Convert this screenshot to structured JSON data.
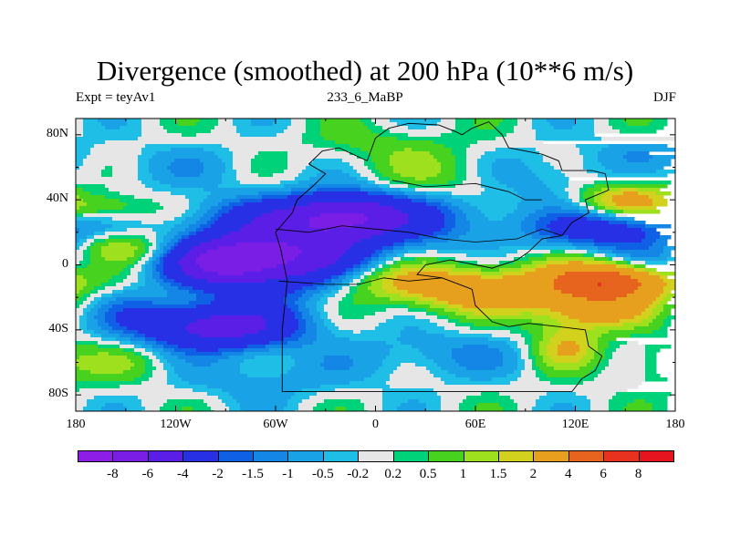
{
  "title": "Divergence (smoothed) at 200 hPa (10**6 m/s)",
  "left_string": "Expt = teyAv1",
  "center_string": "233_6_MaBP",
  "right_string": "DJF",
  "chart_data": {
    "type": "heatmap",
    "projection": "cylindrical equidistant",
    "title": "Divergence (smoothed) at 200 hPa (10**6 m/s)",
    "xlim": [
      -180,
      180
    ],
    "ylim": [
      -90,
      90
    ],
    "x_ticks": [
      {
        "value": -180,
        "label": "180"
      },
      {
        "value": -120,
        "label": "120W"
      },
      {
        "value": -60,
        "label": "60W"
      },
      {
        "value": 0,
        "label": "0"
      },
      {
        "value": 60,
        "label": "60E"
      },
      {
        "value": 120,
        "label": "120E"
      },
      {
        "value": 180,
        "label": "180"
      }
    ],
    "y_ticks": [
      {
        "value": 80,
        "label": "80N"
      },
      {
        "value": 40,
        "label": "40N"
      },
      {
        "value": 0,
        "label": "0"
      },
      {
        "value": -40,
        "label": "40S"
      },
      {
        "value": -80,
        "label": "80S"
      }
    ],
    "levels": [
      "-8",
      "-6",
      "-4",
      "-2",
      "-1.5",
      "-1",
      "-0.5",
      "-0.2",
      "0.2",
      "0.5",
      "1",
      "1.5",
      "2",
      "4",
      "6",
      "8"
    ],
    "level_values": [
      -8,
      -6,
      -4,
      -2,
      -1.5,
      -1,
      -0.5,
      -0.2,
      0.2,
      0.5,
      1,
      1.5,
      2,
      4,
      6,
      8
    ],
    "colors": [
      "#8c1ee6",
      "#7a1ee6",
      "#5a1ee6",
      "#2830e6",
      "#1060e6",
      "#1486e6",
      "#1aa2e6",
      "#1ebee6",
      "#e6e6e6",
      "#00d27a",
      "#46d21e",
      "#9ee01e",
      "#d2d21e",
      "#e6a01e",
      "#e6641e",
      "#e6321e",
      "#e6141e"
    ],
    "features": [
      {
        "lon": -58,
        "lat": 4,
        "sx": 35,
        "sy": 14,
        "v": -6
      },
      {
        "lon": -95,
        "lat": 2,
        "sx": 22,
        "sy": 10,
        "v": -4
      },
      {
        "lon": -20,
        "lat": 30,
        "sx": 25,
        "sy": 10,
        "v": -5
      },
      {
        "lon": 20,
        "lat": 28,
        "sx": 40,
        "sy": 12,
        "v": -2
      },
      {
        "lon": -75,
        "lat": 30,
        "sx": 30,
        "sy": 9,
        "v": -1.5
      },
      {
        "lon": 140,
        "lat": 22,
        "sx": 30,
        "sy": 8,
        "v": -3
      },
      {
        "lon": 165,
        "lat": 5,
        "sx": 20,
        "sy": 8,
        "v": -1.2
      },
      {
        "lon": -95,
        "lat": -38,
        "sx": 35,
        "sy": 10,
        "v": -5
      },
      {
        "lon": -145,
        "lat": -28,
        "sx": 15,
        "sy": 8,
        "v": -0.8
      },
      {
        "lon": 100,
        "lat": 55,
        "sx": 30,
        "sy": 12,
        "v": -1
      },
      {
        "lon": -120,
        "lat": 60,
        "sx": 40,
        "sy": 10,
        "v": -0.6
      },
      {
        "lon": -70,
        "lat": -70,
        "sx": 40,
        "sy": 10,
        "v": -0.8
      },
      {
        "lon": 40,
        "lat": -55,
        "sx": 40,
        "sy": 10,
        "v": -1
      },
      {
        "lon": -150,
        "lat": 10,
        "sx": 25,
        "sy": 7,
        "v": 1.5
      },
      {
        "lon": -160,
        "lat": 35,
        "sx": 20,
        "sy": 6,
        "v": 1.2
      },
      {
        "lon": 60,
        "lat": -15,
        "sx": 40,
        "sy": 10,
        "v": 3
      },
      {
        "lon": 140,
        "lat": -10,
        "sx": 25,
        "sy": 8,
        "v": 5.5
      },
      {
        "lon": 130,
        "lat": -28,
        "sx": 25,
        "sy": 8,
        "v": 2.5
      },
      {
        "lon": 150,
        "lat": 40,
        "sx": 20,
        "sy": 8,
        "v": 2.5
      },
      {
        "lon": -5,
        "lat": -8,
        "sx": 30,
        "sy": 8,
        "v": 1.3
      },
      {
        "lon": 40,
        "lat": 55,
        "sx": 35,
        "sy": 12,
        "v": 1
      },
      {
        "lon": 160,
        "lat": 70,
        "sx": 20,
        "sy": 6,
        "v": -0.6
      },
      {
        "lon": 115,
        "lat": -50,
        "sx": 15,
        "sy": 10,
        "v": 2
      },
      {
        "lon": 170,
        "lat": -60,
        "sx": 15,
        "sy": 10,
        "v": 0.8
      },
      {
        "lon": -150,
        "lat": -60,
        "sx": 25,
        "sy": 10,
        "v": 0.8
      },
      {
        "lon": -20,
        "lat": -45,
        "sx": 15,
        "sy": 15,
        "v": 0.1
      },
      {
        "lon": 0,
        "lat": 75,
        "sx": 30,
        "sy": 8,
        "v": 0.6
      }
    ]
  }
}
